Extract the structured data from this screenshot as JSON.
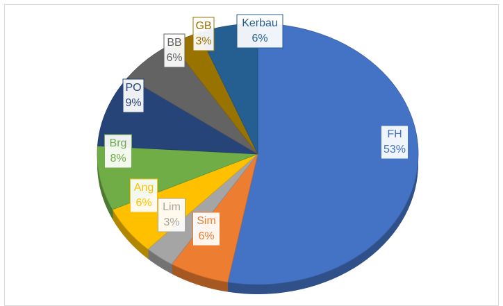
{
  "chart_data": {
    "type": "pie",
    "categories": [
      "FH",
      "Sim",
      "Lim",
      "Ang",
      "Brg",
      "PO",
      "BB",
      "GB",
      "Kerbau"
    ],
    "values": [
      53,
      6,
      3,
      6,
      8,
      9,
      6,
      3,
      6
    ],
    "value_labels": [
      "53%",
      "6%",
      "3%",
      "6%",
      "8%",
      "9%",
      "6%",
      "3%",
      "6%"
    ],
    "colors": [
      "#4472c4",
      "#ed7d31",
      "#a5a5a5",
      "#ffc000",
      "#70ad47",
      "#264478",
      "#636363",
      "#997300",
      "#255e91"
    ]
  }
}
